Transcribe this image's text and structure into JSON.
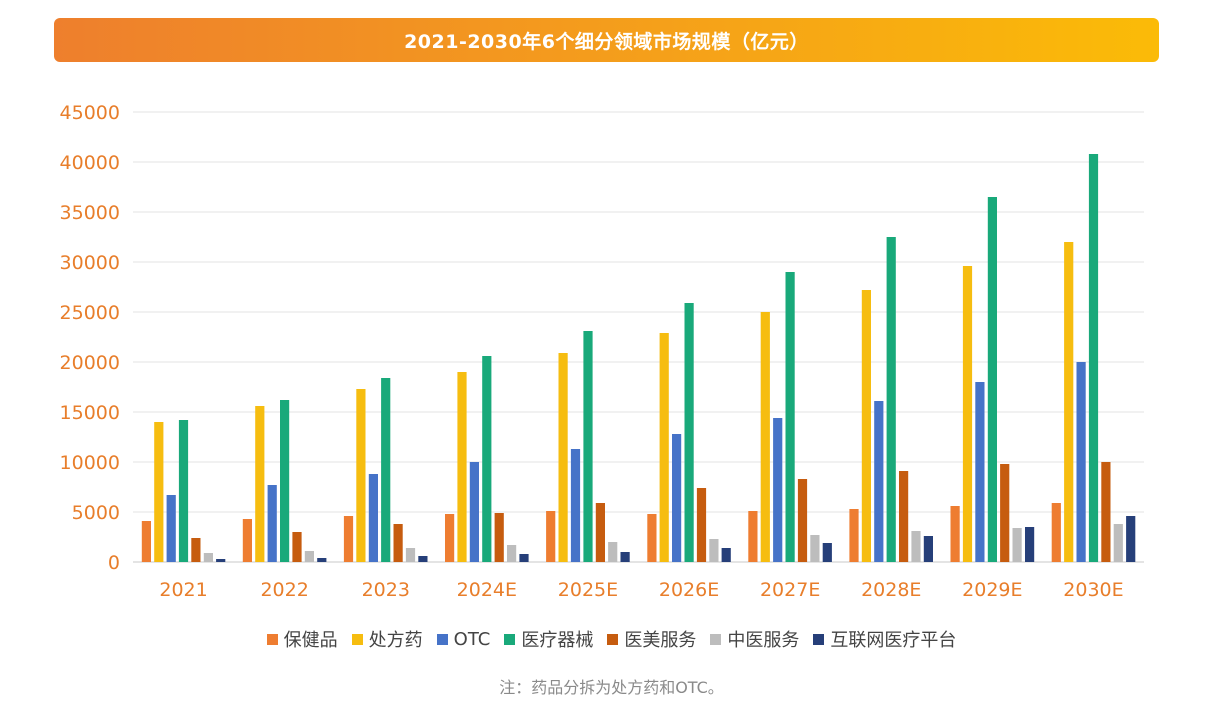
{
  "chart_data": {
    "type": "bar",
    "title": "2021-2030年6个细分领域市场规模（亿元）",
    "categories": [
      "2021",
      "2022",
      "2023",
      "2024E",
      "2025E",
      "2026E",
      "2027E",
      "2028E",
      "2029E",
      "2030E"
    ],
    "ylim": [
      0,
      45000
    ],
    "yticks": [
      0,
      5000,
      10000,
      15000,
      20000,
      25000,
      30000,
      35000,
      40000,
      45000
    ],
    "grid": true,
    "legend_position": "bottom",
    "series": [
      {
        "name": "保健品",
        "color": "#ee7d31",
        "values": [
          4100,
          4300,
          4600,
          4800,
          5100,
          4800,
          5100,
          5300,
          5600,
          5900
        ]
      },
      {
        "name": "处方药",
        "color": "#f6bd10",
        "values": [
          14000,
          15600,
          17300,
          19000,
          20900,
          22900,
          25000,
          27200,
          29600,
          32000
        ]
      },
      {
        "name": "OTC",
        "color": "#4673c8",
        "values": [
          6700,
          7700,
          8800,
          10000,
          11300,
          12800,
          14400,
          16100,
          18000,
          20000
        ]
      },
      {
        "name": "医疗器械",
        "color": "#19a97a",
        "values": [
          14200,
          16200,
          18400,
          20600,
          23100,
          25900,
          29000,
          32500,
          36500,
          40800
        ]
      },
      {
        "name": "医美服务",
        "color": "#c65c0f",
        "values": [
          2400,
          3000,
          3800,
          4900,
          5900,
          7400,
          8300,
          9100,
          9800,
          10000
        ]
      },
      {
        "name": "中医服务",
        "color": "#bdbdbd",
        "values": [
          900,
          1100,
          1400,
          1700,
          2000,
          2300,
          2700,
          3100,
          3400,
          3800
        ]
      },
      {
        "name": "互联网医疗平台",
        "color": "#263f79",
        "values": [
          300,
          400,
          600,
          800,
          1000,
          1400,
          1900,
          2600,
          3500,
          4600
        ]
      }
    ]
  },
  "note": "注：药品分拆为处方药和OTC。"
}
